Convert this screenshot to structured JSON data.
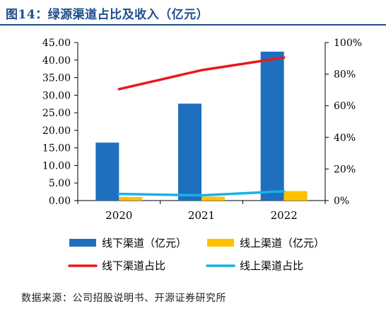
{
  "title": "图14：绿源渠道占比及收入（亿元）",
  "source": "数据来源：公司招股说明书、开源证券研究所",
  "colors": {
    "title": "#1f4e8c",
    "offline_bar": "#1f6fbf",
    "online_bar": "#ffc000",
    "offline_ratio": "#e8191c",
    "online_ratio": "#1ab0e8"
  },
  "chart_data": {
    "type": "bar",
    "categories": [
      "2020",
      "2021",
      "2022"
    ],
    "series": [
      {
        "name": "线下渠道（亿元）",
        "type": "bar",
        "axis": "left",
        "color": "#1f6fbf",
        "values": [
          16.5,
          27.6,
          42.4
        ]
      },
      {
        "name": "线上渠道（亿元）",
        "type": "bar",
        "axis": "left",
        "color": "#ffc000",
        "values": [
          1.0,
          1.1,
          2.7
        ]
      },
      {
        "name": "线下渠道占比",
        "type": "line",
        "axis": "right",
        "color": "#e8191c",
        "values": [
          70.5,
          82.5,
          90.5
        ]
      },
      {
        "name": "线上渠道占比",
        "type": "line",
        "axis": "right",
        "color": "#1ab0e8",
        "values": [
          4.2,
          3.3,
          5.9
        ]
      }
    ],
    "y_left": {
      "min": 0,
      "max": 45,
      "ticks": [
        "0.00",
        "5.00",
        "10.00",
        "15.00",
        "20.00",
        "25.00",
        "30.00",
        "35.00",
        "40.00",
        "45.00"
      ]
    },
    "y_right": {
      "min": 0,
      "max": 100,
      "ticks": [
        "0%",
        "20%",
        "40%",
        "60%",
        "80%",
        "100%"
      ]
    },
    "grid": false,
    "legend_position": "bottom"
  }
}
